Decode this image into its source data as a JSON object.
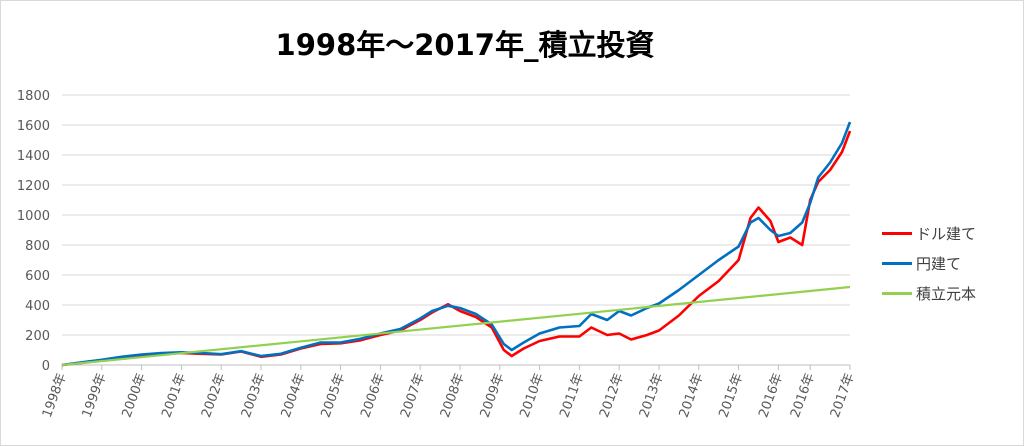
{
  "chart_data": {
    "type": "line",
    "title": "1998年～2017年_積立投資",
    "xlabel": "",
    "ylabel": "",
    "ylim": [
      0,
      1800
    ],
    "yticks": [
      0,
      200,
      400,
      600,
      800,
      1000,
      1200,
      1400,
      1600,
      1800
    ],
    "xlim": [
      1998.0,
      2017.8
    ],
    "xticks": [
      {
        "pos": 1998.0,
        "label": "1998年"
      },
      {
        "pos": 1999.0,
        "label": "1999年"
      },
      {
        "pos": 2000.0,
        "label": "2000年"
      },
      {
        "pos": 2001.0,
        "label": "2001年"
      },
      {
        "pos": 2002.0,
        "label": "2002年"
      },
      {
        "pos": 2003.0,
        "label": "2003年"
      },
      {
        "pos": 2004.0,
        "label": "2004年"
      },
      {
        "pos": 2005.0,
        "label": "2005年"
      },
      {
        "pos": 2006.0,
        "label": "2006年"
      },
      {
        "pos": 2007.0,
        "label": "2007年"
      },
      {
        "pos": 2008.0,
        "label": "2008年"
      },
      {
        "pos": 2009.0,
        "label": "2009年"
      },
      {
        "pos": 2010.0,
        "label": "2010年"
      },
      {
        "pos": 2011.0,
        "label": "2011年"
      },
      {
        "pos": 2012.0,
        "label": "2012年"
      },
      {
        "pos": 2013.0,
        "label": "2013年"
      },
      {
        "pos": 2014.0,
        "label": "2014年"
      },
      {
        "pos": 2015.0,
        "label": "2015年"
      },
      {
        "pos": 2016.0,
        "label": "2016年"
      },
      {
        "pos": 2016.8,
        "label": "2016年"
      },
      {
        "pos": 2017.8,
        "label": "2017年"
      }
    ],
    "grid": true,
    "legend_position": "right",
    "series": [
      {
        "name": "ドル建て",
        "color": "#ff0000",
        "x": [
          1998.0,
          1998.5,
          1999.0,
          1999.5,
          2000.0,
          2000.5,
          2001.0,
          2001.5,
          2002.0,
          2002.5,
          2003.0,
          2003.5,
          2004.0,
          2004.5,
          2005.0,
          2005.5,
          2006.0,
          2006.5,
          2007.0,
          2007.3,
          2007.7,
          2008.0,
          2008.4,
          2008.8,
          2009.1,
          2009.3,
          2009.6,
          2010.0,
          2010.5,
          2011.0,
          2011.3,
          2011.7,
          2012.0,
          2012.3,
          2012.7,
          2013.0,
          2013.5,
          2014.0,
          2014.5,
          2015.0,
          2015.3,
          2015.5,
          2015.8,
          2016.0,
          2016.3,
          2016.6,
          2016.8,
          2017.0,
          2017.3,
          2017.6,
          2017.8
        ],
        "values": [
          0,
          15,
          30,
          50,
          65,
          75,
          80,
          75,
          70,
          90,
          55,
          70,
          110,
          140,
          145,
          165,
          200,
          230,
          300,
          350,
          405,
          360,
          320,
          250,
          100,
          60,
          110,
          160,
          190,
          190,
          250,
          200,
          210,
          170,
          200,
          230,
          330,
          460,
          560,
          700,
          980,
          1050,
          960,
          820,
          850,
          800,
          1100,
          1220,
          1300,
          1420,
          1560
        ]
      },
      {
        "name": "円建て",
        "color": "#0070c0",
        "x": [
          1998.0,
          1998.5,
          1999.0,
          1999.5,
          2000.0,
          2000.5,
          2001.0,
          2001.5,
          2002.0,
          2002.5,
          2003.0,
          2003.5,
          2004.0,
          2004.5,
          2005.0,
          2005.5,
          2006.0,
          2006.5,
          2007.0,
          2007.3,
          2007.7,
          2008.0,
          2008.4,
          2008.8,
          2009.1,
          2009.3,
          2009.6,
          2010.0,
          2010.5,
          2011.0,
          2011.3,
          2011.7,
          2012.0,
          2012.3,
          2012.7,
          2013.0,
          2013.5,
          2014.0,
          2014.5,
          2015.0,
          2015.3,
          2015.5,
          2015.8,
          2016.0,
          2016.3,
          2016.6,
          2016.8,
          2017.0,
          2017.3,
          2017.6,
          2017.8
        ],
        "values": [
          0,
          18,
          35,
          55,
          70,
          80,
          85,
          80,
          72,
          92,
          60,
          75,
          115,
          150,
          150,
          175,
          210,
          240,
          310,
          360,
          395,
          380,
          340,
          270,
          140,
          100,
          150,
          210,
          250,
          260,
          340,
          300,
          360,
          330,
          380,
          410,
          500,
          600,
          700,
          790,
          950,
          980,
          900,
          860,
          880,
          950,
          1080,
          1250,
          1350,
          1480,
          1620
        ]
      },
      {
        "name": "積立元本",
        "color": "#92d050",
        "x": [
          1998.0,
          2017.8
        ],
        "values": [
          0,
          520
        ]
      }
    ]
  }
}
